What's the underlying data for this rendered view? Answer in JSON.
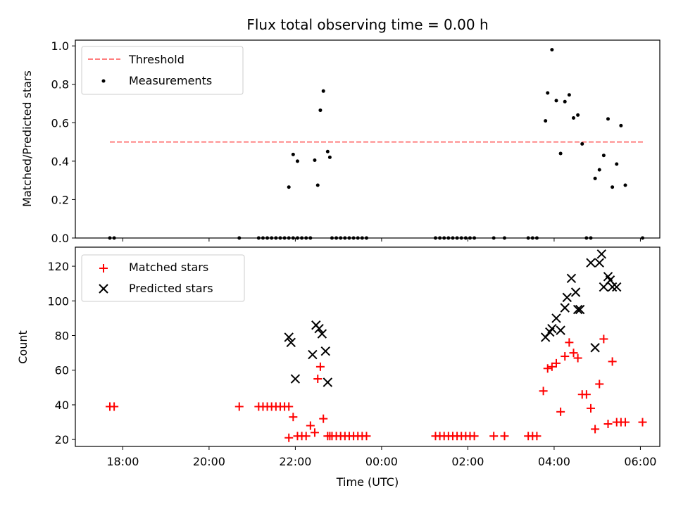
{
  "chart_data": [
    {
      "type": "scatter",
      "title": "Flux total observing time = 0.00 h",
      "ylabel": "Matched/Predicted stars",
      "xlabel": "",
      "xlim_hours": [
        -7.1,
        6.45
      ],
      "ylim": [
        0,
        1.03
      ],
      "y_ticks": [
        "0.0",
        "0.2",
        "0.4",
        "0.6",
        "0.8",
        "1.0"
      ],
      "legend": {
        "placement": "upper-left",
        "entries": [
          "Threshold",
          "Measurements"
        ]
      },
      "series": [
        {
          "name": "Threshold",
          "kind": "dashed-line",
          "color": "#ff7f7f",
          "x": [
            -6.3,
            6.1
          ],
          "values": [
            0.5,
            0.5
          ]
        },
        {
          "name": "Measurements",
          "kind": "dot",
          "color": "#000000",
          "x": [
            -6.3,
            -6.2,
            -3.3,
            -2.85,
            -2.75,
            -2.65,
            -2.55,
            -2.45,
            -2.35,
            -2.25,
            -2.15,
            -2.05,
            -1.95,
            -2.15,
            -2.05,
            -1.95,
            -1.85,
            -1.75,
            -1.65,
            -1.55,
            -1.48,
            -1.42,
            -1.35,
            -1.25,
            -1.2,
            -1.15,
            -1.05,
            -0.95,
            -0.85,
            -0.75,
            -0.65,
            -0.55,
            -0.45,
            -0.35,
            1.25,
            1.35,
            1.45,
            1.55,
            1.65,
            1.75,
            1.85,
            1.95,
            2.05,
            2.15,
            2.6,
            2.85,
            3.4,
            3.5,
            3.6,
            3.8,
            3.85,
            3.95,
            4.05,
            4.15,
            4.25,
            4.35,
            4.45,
            4.55,
            4.65,
            4.75,
            4.85,
            4.95,
            5.05,
            5.15,
            5.25,
            5.35,
            5.45,
            5.55,
            5.65,
            6.05
          ],
          "values": [
            0,
            0,
            0,
            0,
            0,
            0,
            0,
            0,
            0,
            0,
            0,
            0,
            0,
            0.265,
            0.435,
            0.4,
            0,
            0,
            0,
            0.405,
            0.275,
            0.665,
            0.765,
            0.45,
            0.42,
            0,
            0,
            0,
            0,
            0,
            0,
            0,
            0,
            0,
            0,
            0,
            0,
            0,
            0,
            0,
            0,
            0,
            0,
            0,
            0,
            0,
            0,
            0,
            0,
            0.61,
            0.755,
            0.98,
            0.715,
            0.44,
            0.71,
            0.745,
            0.625,
            0.64,
            0.49,
            0,
            0,
            0.31,
            0.355,
            0.43,
            0.62,
            0.265,
            0.385,
            0.585,
            0.275,
            0
          ]
        }
      ]
    },
    {
      "type": "scatter",
      "title": "",
      "ylabel": "Count",
      "xlabel": "Time (UTC)",
      "xlim_hours": [
        -7.1,
        6.45
      ],
      "ylim": [
        16,
        131
      ],
      "y_ticks": [
        "20",
        "40",
        "60",
        "80",
        "100",
        "120"
      ],
      "x_ticks": [
        "18:00",
        "20:00",
        "22:00",
        "00:00",
        "02:00",
        "04:00",
        "06:00"
      ],
      "x_tick_hours": [
        -6,
        -4,
        -2,
        0,
        2,
        4,
        6
      ],
      "legend": {
        "placement": "upper-left",
        "entries": [
          "Matched stars",
          "Predicted stars"
        ]
      },
      "series": [
        {
          "name": "Matched stars",
          "kind": "plus",
          "color": "#ff0000",
          "x": [
            -6.3,
            -6.2,
            -3.3,
            -2.85,
            -2.75,
            -2.65,
            -2.55,
            -2.45,
            -2.35,
            -2.25,
            -2.15,
            -2.15,
            -2.05,
            -1.95,
            -1.85,
            -1.75,
            -1.65,
            -1.55,
            -1.48,
            -1.42,
            -1.35,
            -1.25,
            -1.2,
            -1.15,
            -1.05,
            -0.95,
            -0.85,
            -0.75,
            -0.65,
            -0.55,
            -0.45,
            -0.35,
            1.25,
            1.35,
            1.45,
            1.55,
            1.65,
            1.75,
            1.85,
            1.95,
            2.05,
            2.15,
            2.6,
            2.85,
            3.4,
            3.5,
            3.6,
            3.75,
            3.85,
            3.95,
            4.05,
            4.15,
            4.25,
            4.35,
            4.45,
            4.55,
            4.65,
            4.75,
            4.85,
            4.95,
            5.05,
            5.15,
            5.25,
            5.35,
            5.45,
            5.55,
            5.65,
            6.05
          ],
          "values": [
            39,
            39,
            39,
            39,
            39,
            39,
            39,
            39,
            39,
            39,
            39,
            21,
            33,
            22,
            22,
            22,
            28,
            24,
            55,
            62,
            32,
            22,
            22,
            22,
            22,
            22,
            22,
            22,
            22,
            22,
            22,
            22,
            22,
            22,
            22,
            22,
            22,
            22,
            22,
            22,
            22,
            22,
            22,
            22,
            22,
            22,
            22,
            48,
            61,
            62,
            64,
            36,
            68,
            76,
            70,
            67,
            46,
            46,
            38,
            26,
            52,
            78,
            29,
            65,
            30,
            30,
            30,
            30
          ]
        },
        {
          "name": "Predicted stars",
          "kind": "cross",
          "color": "#000000",
          "x": [
            -2.15,
            -2.1,
            -2.0,
            -1.6,
            -1.52,
            -1.45,
            -1.38,
            -1.3,
            -1.25,
            3.8,
            3.9,
            3.95,
            4.05,
            4.15,
            4.25,
            4.3,
            4.4,
            4.5,
            4.55,
            4.6,
            4.85,
            4.95,
            5.05,
            5.1,
            5.15,
            5.25,
            5.3,
            5.35,
            5.45
          ],
          "values": [
            79,
            76,
            55,
            69,
            86,
            84,
            81,
            71,
            53,
            79,
            82,
            84,
            90,
            83,
            96,
            102,
            113,
            105,
            95,
            95,
            122,
            73,
            122,
            127,
            108,
            114,
            112,
            108,
            108
          ]
        }
      ]
    }
  ]
}
